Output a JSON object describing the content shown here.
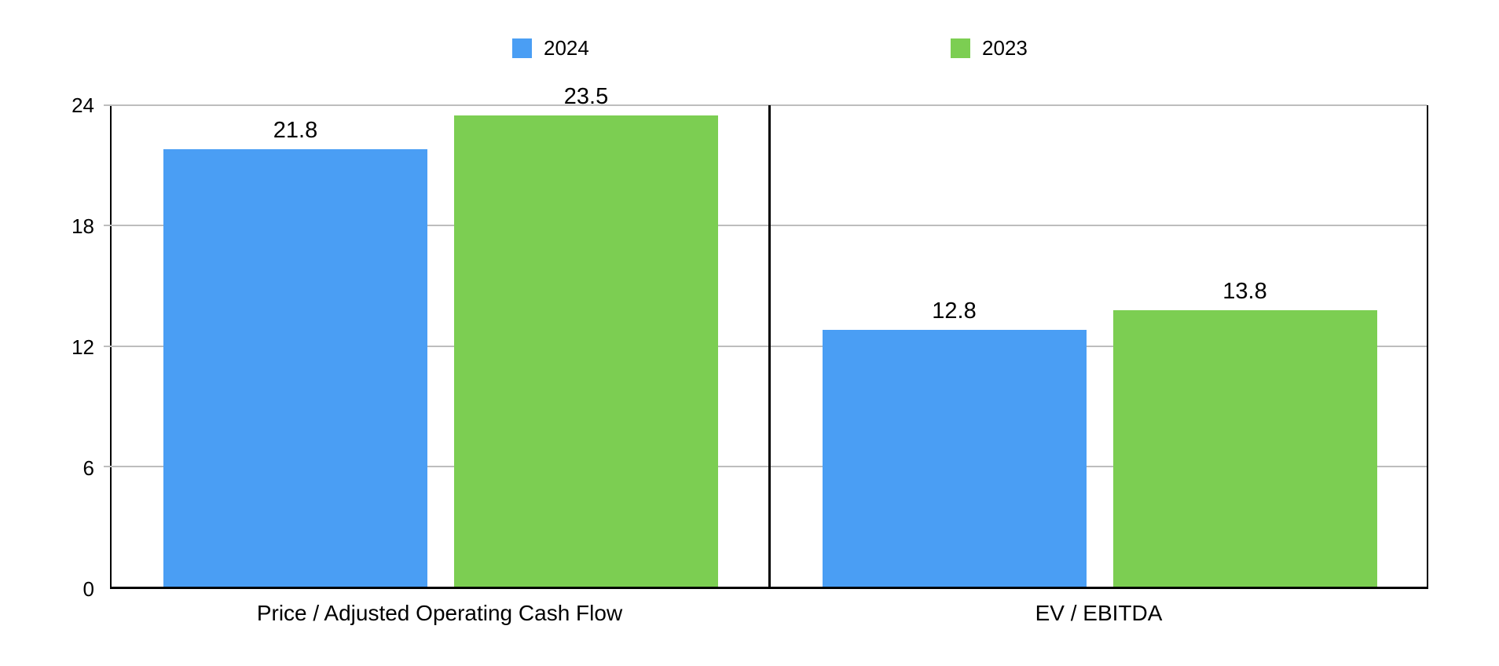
{
  "chart_data": {
    "type": "bar",
    "categories": [
      "Price / Adjusted Operating Cash Flow",
      "EV / EBITDA"
    ],
    "series": [
      {
        "name": "2024",
        "color": "#4A9EF4",
        "values": [
          21.8,
          12.8
        ]
      },
      {
        "name": "2023",
        "color": "#7CCE52",
        "values": [
          23.5,
          13.8
        ]
      }
    ],
    "data_labels": [
      [
        "21.8",
        "12.8"
      ],
      [
        "23.5",
        "13.8"
      ]
    ],
    "y_ticks": [
      0,
      6,
      12,
      18,
      24
    ],
    "ylim": [
      0,
      24
    ],
    "xlabel": "",
    "ylabel": "",
    "legend_position": "top",
    "grid": "horizontal",
    "gridline_color": "#BDBDBD",
    "axis_color": "#000000",
    "background_color": "#FFFFFF",
    "text_color": "#000000"
  }
}
